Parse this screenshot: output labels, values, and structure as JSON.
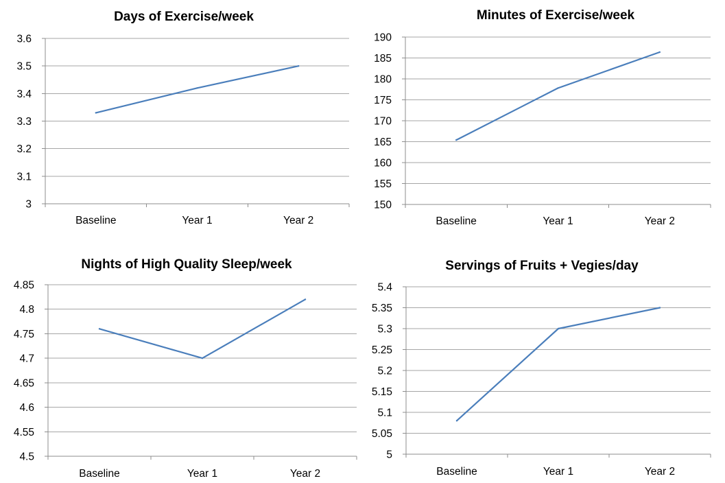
{
  "colors": {
    "series": "#4a7ebb",
    "grid": "#a6a6a6",
    "axis": "#8c8c8c"
  },
  "chart_data": [
    {
      "type": "line",
      "title": "Days of Exercise/week",
      "categories": [
        "Baseline",
        "Year 1",
        "Year 2"
      ],
      "values": [
        3.33,
        3.42,
        3.5
      ],
      "ylim": [
        3,
        3.6
      ],
      "yticks": [
        "3",
        "3.1",
        "3.2",
        "3.3",
        "3.4",
        "3.5",
        "3.6"
      ],
      "grid": true,
      "legend": "none"
    },
    {
      "type": "line",
      "title": "Minutes of Exercise/week",
      "categories": [
        "Baseline",
        "Year 1",
        "Year 2"
      ],
      "values": [
        165.4,
        177.8,
        186.4
      ],
      "ylim": [
        150,
        190
      ],
      "yticks": [
        "150",
        "155",
        "160",
        "165",
        "170",
        "175",
        "180",
        "185",
        "190"
      ],
      "grid": true,
      "legend": "none"
    },
    {
      "type": "line",
      "title": "Nights of High Quality Sleep/week",
      "categories": [
        "Baseline",
        "Year 1",
        "Year 2"
      ],
      "values": [
        4.76,
        4.7,
        4.82
      ],
      "ylim": [
        4.5,
        4.85
      ],
      "yticks": [
        "4.5",
        "4.55",
        "4.6",
        "4.65",
        "4.7",
        "4.75",
        "4.8",
        "4.85"
      ],
      "grid": true,
      "legend": "none"
    },
    {
      "type": "line",
      "title": "Servings of Fruits + Vegies/day",
      "categories": [
        "Baseline",
        "Year 1",
        "Year 2"
      ],
      "values": [
        5.08,
        5.3,
        5.35
      ],
      "ylim": [
        5,
        5.4
      ],
      "yticks": [
        "5",
        "5.05",
        "5.1",
        "5.15",
        "5.2",
        "5.25",
        "5.3",
        "5.35",
        "5.4"
      ],
      "grid": true,
      "legend": "none"
    }
  ]
}
